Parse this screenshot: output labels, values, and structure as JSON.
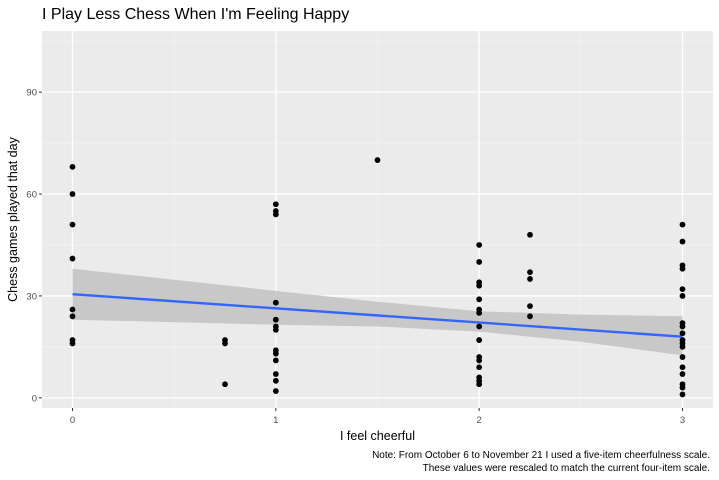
{
  "chart_data": {
    "type": "scatter",
    "title": "I Play Less Chess When I'm Feeling Happy",
    "xlabel": "I feel cheerful",
    "ylabel": "Chess games played that day",
    "caption_lines": [
      "Note: From October 6 to November 21 I used a five-item cheerfulness scale.",
      "These values were rescaled to match the current four-item scale."
    ],
    "xlim": [
      -0.15,
      3.15
    ],
    "ylim": [
      -3,
      108
    ],
    "x_ticks": [
      0,
      1,
      2,
      3
    ],
    "y_ticks": [
      0,
      30,
      60,
      90
    ],
    "grid": true,
    "points": [
      {
        "x": 0,
        "y": 68
      },
      {
        "x": 0,
        "y": 60
      },
      {
        "x": 0,
        "y": 51
      },
      {
        "x": 0,
        "y": 41
      },
      {
        "x": 0,
        "y": 26
      },
      {
        "x": 0,
        "y": 24
      },
      {
        "x": 0,
        "y": 17
      },
      {
        "x": 0,
        "y": 16
      },
      {
        "x": 0.75,
        "y": 17
      },
      {
        "x": 0.75,
        "y": 16
      },
      {
        "x": 0.75,
        "y": 4
      },
      {
        "x": 1,
        "y": 57
      },
      {
        "x": 1,
        "y": 55
      },
      {
        "x": 1,
        "y": 54
      },
      {
        "x": 1,
        "y": 28
      },
      {
        "x": 1,
        "y": 23
      },
      {
        "x": 1,
        "y": 21
      },
      {
        "x": 1,
        "y": 20
      },
      {
        "x": 1,
        "y": 14
      },
      {
        "x": 1,
        "y": 13
      },
      {
        "x": 1,
        "y": 11
      },
      {
        "x": 1,
        "y": 7
      },
      {
        "x": 1,
        "y": 5
      },
      {
        "x": 1,
        "y": 2
      },
      {
        "x": 1.5,
        "y": 70
      },
      {
        "x": 2,
        "y": 45
      },
      {
        "x": 2,
        "y": 40
      },
      {
        "x": 2,
        "y": 34
      },
      {
        "x": 2,
        "y": 33
      },
      {
        "x": 2,
        "y": 29
      },
      {
        "x": 2,
        "y": 26
      },
      {
        "x": 2,
        "y": 25
      },
      {
        "x": 2,
        "y": 21
      },
      {
        "x": 2,
        "y": 17
      },
      {
        "x": 2,
        "y": 12
      },
      {
        "x": 2,
        "y": 11
      },
      {
        "x": 2,
        "y": 9
      },
      {
        "x": 2,
        "y": 6
      },
      {
        "x": 2,
        "y": 5
      },
      {
        "x": 2,
        "y": 4
      },
      {
        "x": 2.25,
        "y": 48
      },
      {
        "x": 2.25,
        "y": 37
      },
      {
        "x": 2.25,
        "y": 35
      },
      {
        "x": 2.25,
        "y": 27
      },
      {
        "x": 2.25,
        "y": 24
      },
      {
        "x": 3,
        "y": 51
      },
      {
        "x": 3,
        "y": 46
      },
      {
        "x": 3,
        "y": 39
      },
      {
        "x": 3,
        "y": 38
      },
      {
        "x": 3,
        "y": 32
      },
      {
        "x": 3,
        "y": 30
      },
      {
        "x": 3,
        "y": 22
      },
      {
        "x": 3,
        "y": 21
      },
      {
        "x": 3,
        "y": 19
      },
      {
        "x": 3,
        "y": 17
      },
      {
        "x": 3,
        "y": 16
      },
      {
        "x": 3,
        "y": 15
      },
      {
        "x": 3,
        "y": 12
      },
      {
        "x": 3,
        "y": 9
      },
      {
        "x": 3,
        "y": 7
      },
      {
        "x": 3,
        "y": 4
      },
      {
        "x": 3,
        "y": 3
      },
      {
        "x": 3,
        "y": 1
      }
    ],
    "trend_line": {
      "x": [
        0,
        3
      ],
      "y": [
        30.5,
        18
      ]
    },
    "confidence_band": {
      "x": [
        0,
        1,
        1.5,
        2,
        2.5,
        3
      ],
      "lower": [
        23,
        21.5,
        21,
        19.5,
        16.5,
        12.5
      ],
      "upper": [
        38,
        31.5,
        28.3,
        25.5,
        24.5,
        24
      ]
    },
    "colors": {
      "panel_bg": "#ebebeb",
      "grid_major": "#ffffff",
      "grid_minor": "#f5f5f5",
      "point": "#000000",
      "trend": "#3366ff",
      "band": "#c4c4c4"
    }
  }
}
